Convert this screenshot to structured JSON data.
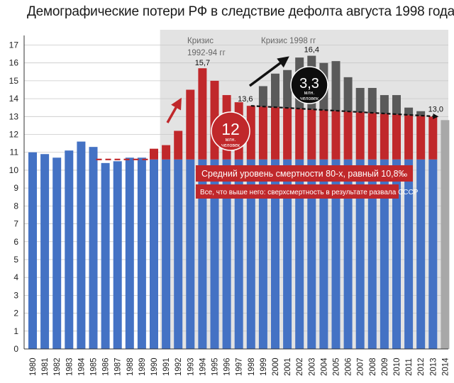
{
  "chart_data": {
    "type": "bar",
    "title": "Демографические потери РФ в следствие дефолта августа 1998 года",
    "categories": [
      "1980",
      "1981",
      "1982",
      "1983",
      "1984",
      "1985",
      "1986",
      "1987",
      "1988",
      "1989",
      "1990",
      "1991",
      "1992",
      "1993",
      "1994",
      "1995",
      "1996",
      "1997",
      "1998",
      "1999",
      "2000",
      "2001",
      "2002",
      "2003",
      "2004",
      "2005",
      "2006",
      "2007",
      "2008",
      "2009",
      "2010",
      "2011",
      "2012",
      "2013",
      "2014"
    ],
    "values": [
      11.0,
      10.9,
      10.7,
      11.1,
      11.6,
      11.3,
      10.4,
      10.5,
      10.7,
      10.7,
      11.2,
      11.4,
      12.2,
      14.5,
      15.7,
      15.0,
      14.2,
      13.8,
      13.6,
      14.7,
      15.4,
      15.6,
      16.3,
      16.4,
      16.0,
      16.1,
      15.2,
      14.6,
      14.6,
      14.2,
      14.2,
      13.5,
      13.3,
      13.0,
      12.8
    ],
    "baseline": 10.6,
    "ylim": [
      0,
      17
    ],
    "yticks": [
      "0",
      "1",
      "2",
      "3",
      "4",
      "5",
      "6",
      "7",
      "8",
      "9",
      "10",
      "11",
      "12",
      "13",
      "14",
      "15",
      "16",
      "17"
    ],
    "grid": true,
    "shaded_region_from": "1991",
    "colors": {
      "blue": "#4472c4",
      "red": "#c0282b",
      "dark": "#5a5a5a",
      "gray": "#a8a8a8",
      "shade": "#e3e3e3",
      "grid": "#c8c8c8"
    },
    "annotations": {
      "crisis1_label_line1": "Кризис",
      "crisis1_label_line2": "1992-94 гг",
      "crisis2_label": "Кризис 1998 гг",
      "peak1": "15,7",
      "peak2": "16,4",
      "val_1998": "13,6",
      "val_2013": "13,0",
      "circle_red_number": "12",
      "circle_red_line1": "млн.",
      "circle_red_line2": "человек",
      "circle_black_number": "3,3",
      "circle_black_line1": "млн.",
      "circle_black_line2": "человек",
      "note1": "Средний уровень смертности 80-х, равный 10,8‰",
      "note2": "Все, что выше него: сверхсмертность в результате развала СССР"
    }
  }
}
